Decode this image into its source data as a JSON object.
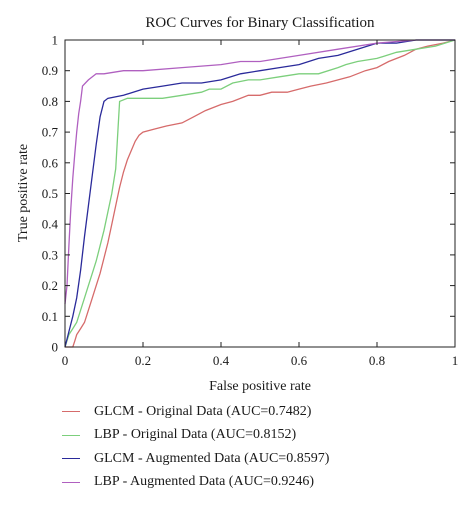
{
  "chart_data": {
    "type": "line",
    "title": "ROC Curves for Binary Classification",
    "xlabel": "False positive rate",
    "ylabel": "True positive rate",
    "xlim": [
      0,
      1
    ],
    "ylim": [
      0,
      1
    ],
    "xticks": [
      "0",
      "0.2",
      "0.4",
      "0.6",
      "0.8",
      "1"
    ],
    "yticks": [
      "0",
      "0.1",
      "0.2",
      "0.3",
      "0.4",
      "0.5",
      "0.6",
      "0.7",
      "0.8",
      "0.9",
      "1"
    ],
    "grid": false,
    "legend_position": "below",
    "series": [
      {
        "name": "GLCM - Original Data (AUC=0.7482)",
        "color": "#d66b6b",
        "points": [
          [
            0,
            0
          ],
          [
            0.02,
            0
          ],
          [
            0.025,
            0.02
          ],
          [
            0.03,
            0.04
          ],
          [
            0.04,
            0.06
          ],
          [
            0.05,
            0.08
          ],
          [
            0.06,
            0.12
          ],
          [
            0.07,
            0.16
          ],
          [
            0.08,
            0.2
          ],
          [
            0.09,
            0.24
          ],
          [
            0.1,
            0.29
          ],
          [
            0.11,
            0.34
          ],
          [
            0.12,
            0.4
          ],
          [
            0.13,
            0.46
          ],
          [
            0.14,
            0.52
          ],
          [
            0.15,
            0.57
          ],
          [
            0.16,
            0.61
          ],
          [
            0.17,
            0.64
          ],
          [
            0.18,
            0.67
          ],
          [
            0.19,
            0.69
          ],
          [
            0.2,
            0.7
          ],
          [
            0.23,
            0.71
          ],
          [
            0.26,
            0.72
          ],
          [
            0.3,
            0.73
          ],
          [
            0.33,
            0.75
          ],
          [
            0.36,
            0.77
          ],
          [
            0.4,
            0.79
          ],
          [
            0.43,
            0.8
          ],
          [
            0.47,
            0.82
          ],
          [
            0.5,
            0.82
          ],
          [
            0.53,
            0.83
          ],
          [
            0.57,
            0.83
          ],
          [
            0.6,
            0.84
          ],
          [
            0.63,
            0.85
          ],
          [
            0.67,
            0.86
          ],
          [
            0.7,
            0.87
          ],
          [
            0.73,
            0.88
          ],
          [
            0.77,
            0.9
          ],
          [
            0.8,
            0.91
          ],
          [
            0.83,
            0.93
          ],
          [
            0.87,
            0.95
          ],
          [
            0.9,
            0.97
          ],
          [
            0.93,
            0.98
          ],
          [
            0.97,
            0.99
          ],
          [
            1,
            1
          ]
        ]
      },
      {
        "name": "LBP - Original Data (AUC=0.8152)",
        "color": "#7ccf7c",
        "points": [
          [
            0,
            0
          ],
          [
            0.01,
            0.04
          ],
          [
            0.02,
            0.06
          ],
          [
            0.03,
            0.08
          ],
          [
            0.04,
            0.12
          ],
          [
            0.05,
            0.16
          ],
          [
            0.06,
            0.2
          ],
          [
            0.07,
            0.24
          ],
          [
            0.08,
            0.28
          ],
          [
            0.09,
            0.33
          ],
          [
            0.1,
            0.38
          ],
          [
            0.11,
            0.44
          ],
          [
            0.12,
            0.5
          ],
          [
            0.13,
            0.58
          ],
          [
            0.14,
            0.8
          ],
          [
            0.16,
            0.81
          ],
          [
            0.2,
            0.81
          ],
          [
            0.25,
            0.81
          ],
          [
            0.3,
            0.82
          ],
          [
            0.35,
            0.83
          ],
          [
            0.37,
            0.84
          ],
          [
            0.4,
            0.84
          ],
          [
            0.43,
            0.86
          ],
          [
            0.47,
            0.87
          ],
          [
            0.5,
            0.87
          ],
          [
            0.55,
            0.88
          ],
          [
            0.6,
            0.89
          ],
          [
            0.65,
            0.89
          ],
          [
            0.7,
            0.91
          ],
          [
            0.72,
            0.92
          ],
          [
            0.75,
            0.93
          ],
          [
            0.8,
            0.94
          ],
          [
            0.85,
            0.96
          ],
          [
            0.9,
            0.97
          ],
          [
            0.95,
            0.98
          ],
          [
            1,
            1
          ]
        ]
      },
      {
        "name": "GLCM - Augmented Data (AUC=0.8597)",
        "color": "#2a2a9a",
        "points": [
          [
            0,
            0
          ],
          [
            0.01,
            0.05
          ],
          [
            0.02,
            0.1
          ],
          [
            0.03,
            0.16
          ],
          [
            0.04,
            0.25
          ],
          [
            0.05,
            0.36
          ],
          [
            0.06,
            0.46
          ],
          [
            0.07,
            0.56
          ],
          [
            0.08,
            0.66
          ],
          [
            0.09,
            0.75
          ],
          [
            0.1,
            0.8
          ],
          [
            0.11,
            0.81
          ],
          [
            0.15,
            0.82
          ],
          [
            0.2,
            0.84
          ],
          [
            0.25,
            0.85
          ],
          [
            0.3,
            0.86
          ],
          [
            0.35,
            0.86
          ],
          [
            0.4,
            0.87
          ],
          [
            0.45,
            0.89
          ],
          [
            0.5,
            0.9
          ],
          [
            0.55,
            0.91
          ],
          [
            0.6,
            0.92
          ],
          [
            0.65,
            0.94
          ],
          [
            0.7,
            0.95
          ],
          [
            0.75,
            0.97
          ],
          [
            0.8,
            0.99
          ],
          [
            0.85,
            0.99
          ],
          [
            0.9,
            1
          ],
          [
            1,
            1
          ]
        ]
      },
      {
        "name": "LBP - Augmented Data (AUC=0.9246)",
        "color": "#b060c0",
        "points": [
          [
            0,
            0.14
          ],
          [
            0.005,
            0.2
          ],
          [
            0.01,
            0.33
          ],
          [
            0.015,
            0.45
          ],
          [
            0.02,
            0.55
          ],
          [
            0.025,
            0.63
          ],
          [
            0.03,
            0.7
          ],
          [
            0.035,
            0.76
          ],
          [
            0.04,
            0.8
          ],
          [
            0.045,
            0.85
          ],
          [
            0.06,
            0.87
          ],
          [
            0.08,
            0.89
          ],
          [
            0.1,
            0.89
          ],
          [
            0.15,
            0.9
          ],
          [
            0.2,
            0.9
          ],
          [
            0.3,
            0.91
          ],
          [
            0.4,
            0.92
          ],
          [
            0.45,
            0.93
          ],
          [
            0.5,
            0.93
          ],
          [
            0.6,
            0.95
          ],
          [
            0.7,
            0.97
          ],
          [
            0.8,
            0.99
          ],
          [
            0.9,
            1
          ],
          [
            1,
            1
          ]
        ]
      }
    ]
  }
}
